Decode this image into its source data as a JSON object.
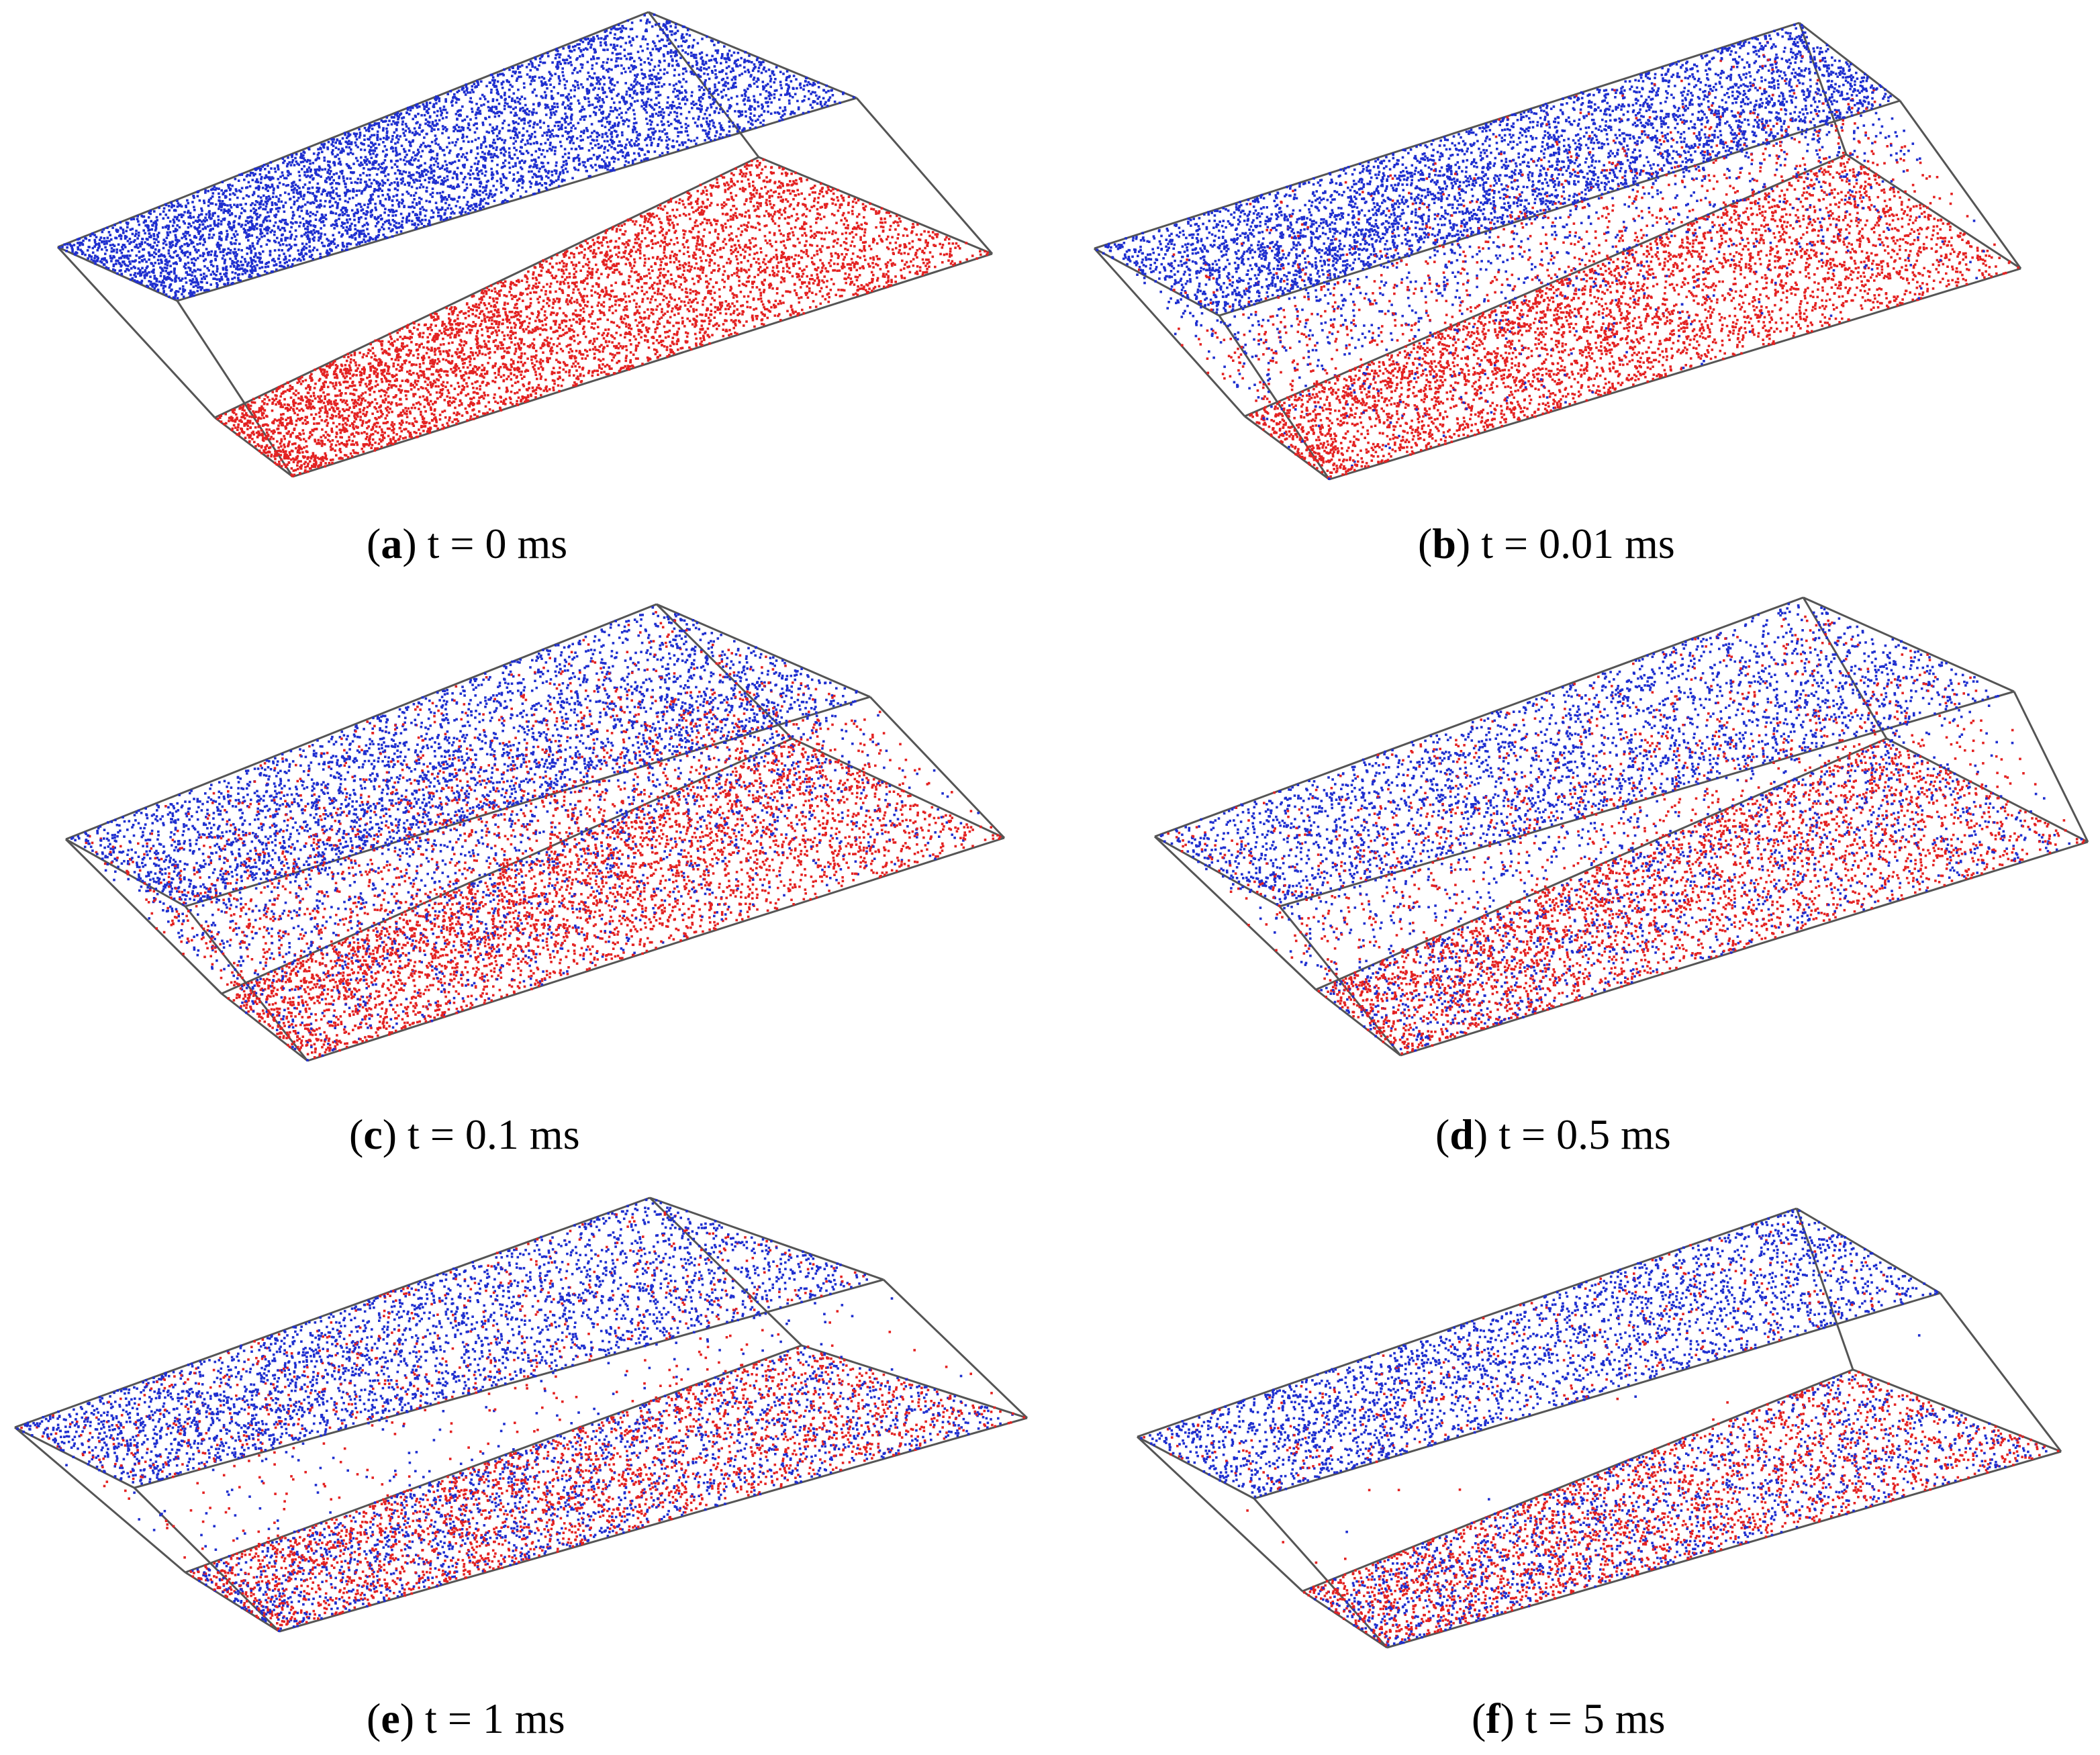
{
  "figure": {
    "colors": {
      "species_1": "#1f2fcf",
      "species_2": "#e32222",
      "box_edge": "#555555"
    },
    "panels": [
      {
        "letter": "a",
        "caption": "t = 0 ms",
        "time_ms": 0
      },
      {
        "letter": "b",
        "caption": "t = 0.01 ms",
        "time_ms": 0.01
      },
      {
        "letter": "c",
        "caption": "t = 0.1 ms",
        "time_ms": 0.1
      },
      {
        "letter": "d",
        "caption": "t = 0.5 ms",
        "time_ms": 0.5
      },
      {
        "letter": "e",
        "caption": "t = 1 ms",
        "time_ms": 1
      },
      {
        "letter": "f",
        "caption": "t = 5 ms",
        "time_ms": 5
      }
    ]
  }
}
